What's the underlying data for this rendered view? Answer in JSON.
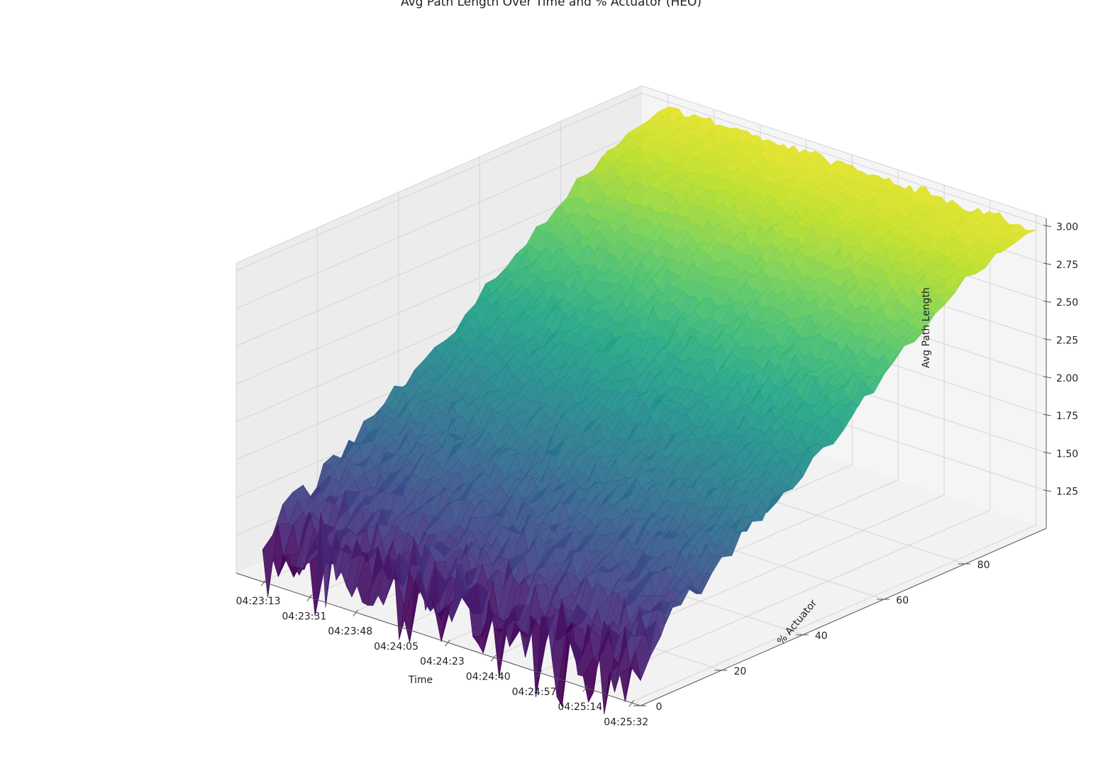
{
  "chart_data": {
    "type": "surface3d",
    "title": "Avg Path Length Over Time and % Actuator (HEO)",
    "xlabel": "Time",
    "ylabel": "% Actuator",
    "zlabel": "Avg Path Length",
    "x_ticks": [
      "04:23:13",
      "04:23:31",
      "04:23:48",
      "04:24:05",
      "04:24:23",
      "04:24:40",
      "04:24:57",
      "04:25:14",
      "04:25:32"
    ],
    "y_ticks": [
      "0",
      "20",
      "40",
      "60",
      "80"
    ],
    "z_ticks": [
      "1.25",
      "1.50",
      "1.75",
      "2.00",
      "2.25",
      "2.50",
      "2.75",
      "3.00"
    ],
    "x_range": [
      "04:23:13",
      "04:25:32"
    ],
    "y_range": [
      0,
      100
    ],
    "z_range": [
      1.0,
      3.05
    ],
    "colormap": "viridis",
    "grid": true,
    "surface": {
      "actuator_pct": [
        0,
        10,
        20,
        30,
        40,
        50,
        60,
        70,
        80,
        90,
        100
      ],
      "avg_path_length_mean": [
        1.2,
        1.45,
        1.63,
        1.82,
        1.98,
        2.18,
        2.38,
        2.58,
        2.78,
        2.9,
        2.96
      ],
      "noise_amplitude": [
        0.22,
        0.1,
        0.07,
        0.06,
        0.05,
        0.05,
        0.05,
        0.04,
        0.04,
        0.03,
        0.03
      ]
    }
  }
}
